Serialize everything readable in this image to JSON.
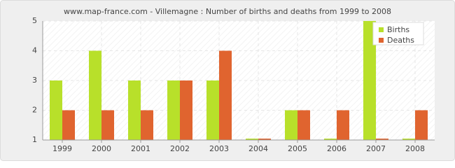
{
  "chart_data": {
    "type": "bar",
    "title": "www.map-france.com - Villemagne : Number of births and deaths from 1999 to 2008",
    "categories": [
      "1999",
      "2000",
      "2001",
      "2002",
      "2003",
      "2004",
      "2005",
      "2006",
      "2007",
      "2008"
    ],
    "series": [
      {
        "name": "Births",
        "color": "#b8e02a",
        "values": [
          3,
          4,
          3,
          3,
          3,
          1,
          2,
          1,
          5,
          1
        ]
      },
      {
        "name": "Deaths",
        "color": "#e0642f",
        "values": [
          2,
          2,
          2,
          3,
          4,
          1,
          2,
          2,
          1,
          2
        ]
      }
    ],
    "ylim": [
      1,
      5
    ],
    "yticks": [
      1,
      2,
      3,
      4,
      5
    ],
    "grid": true,
    "legend": "top-right"
  }
}
